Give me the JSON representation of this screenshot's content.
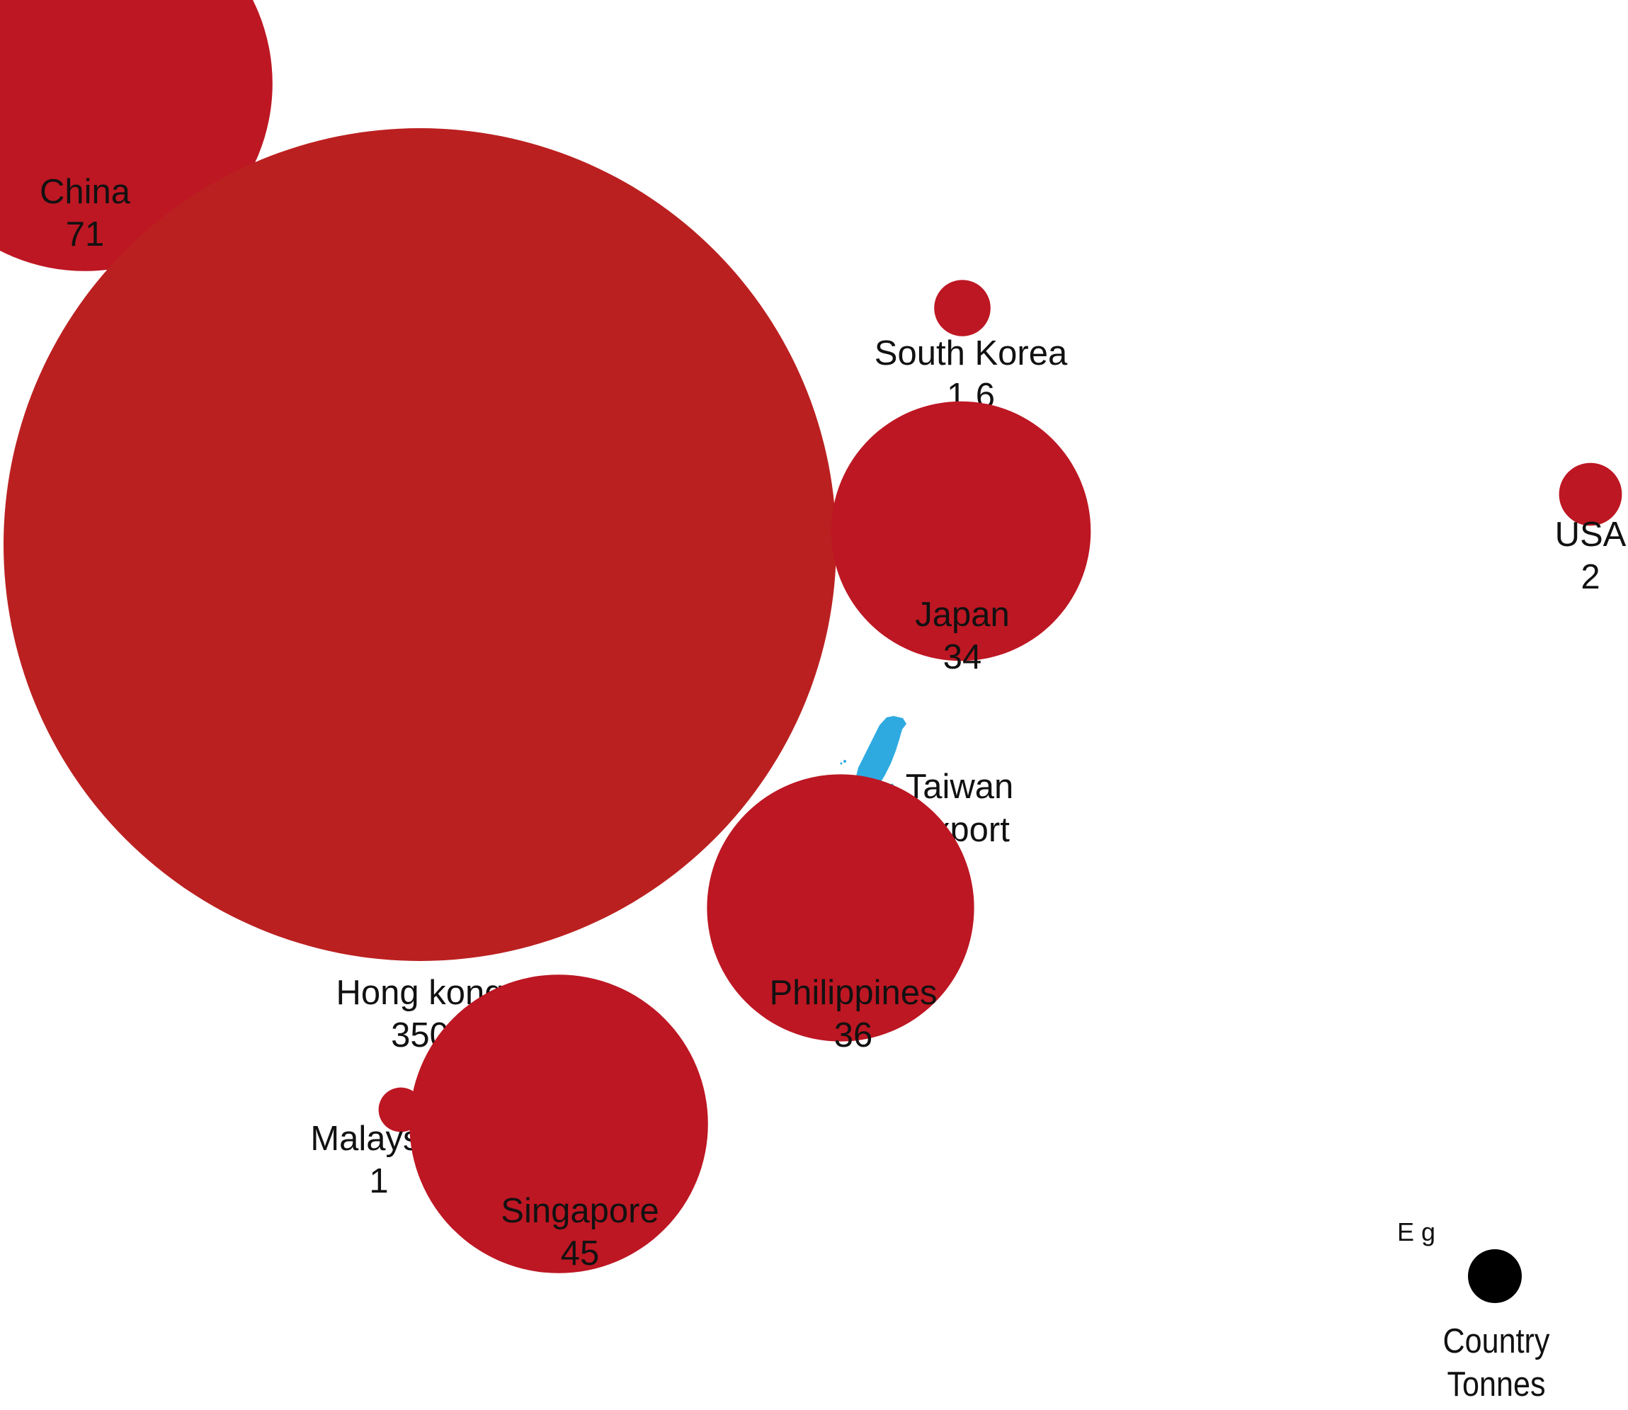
{
  "chart_data": {
    "type": "bubble-map",
    "origin": {
      "name": "Taiwan",
      "label": "Export",
      "color": "#2eaae1"
    },
    "bubble_color": "#bb2020",
    "points": [
      {
        "name": "China",
        "value": "71",
        "tonnes": 71
      },
      {
        "name": "Hong kong",
        "value": "350",
        "tonnes": 350
      },
      {
        "name": "South Korea",
        "value": "1.6",
        "tonnes": 1.6
      },
      {
        "name": "Japan",
        "value": "34",
        "tonnes": 34
      },
      {
        "name": "USA",
        "value": "2",
        "tonnes": 2
      },
      {
        "name": "Philippines",
        "value": "36",
        "tonnes": 36
      },
      {
        "name": "Malaysia",
        "value": "1",
        "tonnes": 1
      },
      {
        "name": "Singapore",
        "value": "45",
        "tonnes": 45
      }
    ],
    "legend": {
      "title": "E g",
      "line1": "Country",
      "line2": "Tonnes",
      "color": "#000000"
    }
  }
}
